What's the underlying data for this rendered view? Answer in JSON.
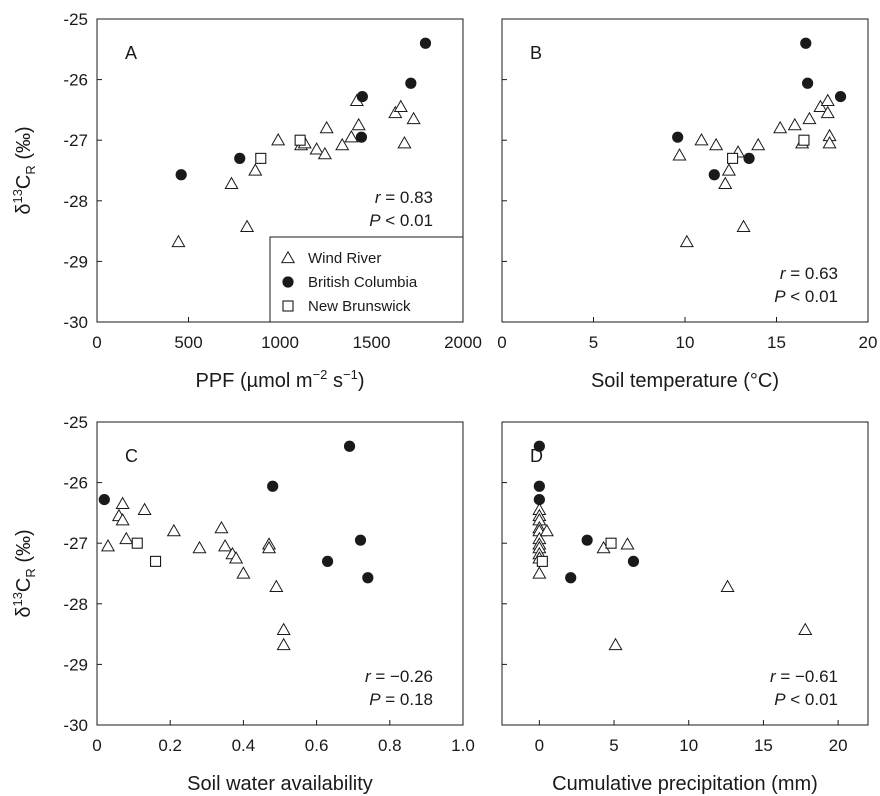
{
  "chart_data": [
    {
      "type": "scatter",
      "panel": "A",
      "xlabel_main": "PPF (µmol m",
      "xlabel_sup1": "−2",
      "xlabel_mid": " s",
      "xlabel_sup2": "−1",
      "xlabel_end": ")",
      "ylabel_delta": "δ",
      "ylabel_sup": "13",
      "ylabel_base": "C",
      "ylabel_sub": "R",
      "ylabel_tail": " (‰)",
      "xlim": [
        0,
        2000
      ],
      "ylim": [
        -30,
        -25
      ],
      "xticks": [
        "0",
        "500",
        "1000",
        "1500",
        "2000"
      ],
      "xtick_values": [
        0,
        500,
        1000,
        1500,
        2000
      ],
      "yticks": [
        "-25",
        "-26",
        "-27",
        "-28",
        "-29",
        "-30"
      ],
      "ytick_values": [
        -25,
        -26,
        -27,
        -28,
        -29,
        -30
      ],
      "r_label": "r",
      "r_value": " = 0.83",
      "p_label": "P",
      "p_value": " < 0.01",
      "series": [
        {
          "name": "Wind River",
          "marker": "triangle",
          "points": [
            [
              445,
              -28.68
            ],
            [
              735,
              -27.72
            ],
            [
              820,
              -28.43
            ],
            [
              865,
              -27.5
            ],
            [
              990,
              -27.0
            ],
            [
              1115,
              -27.08
            ],
            [
              1135,
              -27.05
            ],
            [
              1200,
              -27.15
            ],
            [
              1245,
              -27.23
            ],
            [
              1255,
              -26.8
            ],
            [
              1340,
              -27.08
            ],
            [
              1390,
              -26.95
            ],
            [
              1420,
              -26.35
            ],
            [
              1430,
              -26.75
            ],
            [
              1630,
              -26.55
            ],
            [
              1660,
              -26.45
            ],
            [
              1680,
              -27.05
            ],
            [
              1730,
              -26.65
            ]
          ]
        },
        {
          "name": "British Columbia",
          "marker": "circle",
          "points": [
            [
              460,
              -27.57
            ],
            [
              780,
              -27.3
            ],
            [
              1445,
              -26.95
            ],
            [
              1450,
              -26.28
            ],
            [
              1715,
              -26.06
            ],
            [
              1795,
              -25.4
            ]
          ]
        },
        {
          "name": "New Brunswick",
          "marker": "square",
          "points": [
            [
              895,
              -27.3
            ],
            [
              1110,
              -27.0
            ]
          ]
        }
      ],
      "legend_position": "bottom-right"
    },
    {
      "type": "scatter",
      "panel": "B",
      "xlabel": "Soil temperature (°C)",
      "xlim": [
        0,
        20
      ],
      "ylim": [
        -30,
        -25
      ],
      "xticks": [
        "0",
        "5",
        "10",
        "15",
        "20"
      ],
      "xtick_values": [
        0,
        5,
        10,
        15,
        20
      ],
      "r_label": "r",
      "r_value": " = 0.63",
      "p_label": "P",
      "p_value": " < 0.01",
      "series": [
        {
          "name": "Wind River",
          "marker": "triangle",
          "points": [
            [
              9.7,
              -27.25
            ],
            [
              10.1,
              -28.68
            ],
            [
              10.9,
              -27.0
            ],
            [
              11.7,
              -27.08
            ],
            [
              12.2,
              -27.72
            ],
            [
              12.4,
              -27.5
            ],
            [
              12.9,
              -27.2
            ],
            [
              13.2,
              -28.43
            ],
            [
              14.0,
              -27.08
            ],
            [
              15.2,
              -26.8
            ],
            [
              16.0,
              -26.75
            ],
            [
              16.4,
              -27.05
            ],
            [
              16.8,
              -26.65
            ],
            [
              17.4,
              -26.45
            ],
            [
              17.8,
              -26.35
            ],
            [
              17.8,
              -26.55
            ],
            [
              17.9,
              -26.93
            ],
            [
              17.9,
              -27.05
            ]
          ]
        },
        {
          "name": "British Columbia",
          "marker": "circle",
          "points": [
            [
              9.6,
              -26.95
            ],
            [
              11.6,
              -27.57
            ],
            [
              13.5,
              -27.3
            ],
            [
              16.6,
              -25.4
            ],
            [
              16.7,
              -26.06
            ],
            [
              18.5,
              -26.28
            ]
          ]
        },
        {
          "name": "New Brunswick",
          "marker": "square",
          "points": [
            [
              12.6,
              -27.3
            ],
            [
              16.5,
              -27.0
            ]
          ]
        }
      ]
    },
    {
      "type": "scatter",
      "panel": "C",
      "xlabel": "Soil water availability",
      "xlim": [
        0,
        1.0
      ],
      "ylim": [
        -30,
        -25
      ],
      "xticks": [
        "0",
        "0.2",
        "0.4",
        "0.6",
        "0.8",
        "1.0"
      ],
      "xtick_values": [
        0,
        0.2,
        0.4,
        0.6,
        0.8,
        1.0
      ],
      "yticks": [
        "-25",
        "-26",
        "-27",
        "-28",
        "-29",
        "-30"
      ],
      "ytick_values": [
        -25,
        -26,
        -27,
        -28,
        -29,
        -30
      ],
      "r_label": "r",
      "r_value": " = −0.26",
      "p_label": "P",
      "p_value": " = 0.18",
      "series": [
        {
          "name": "Wind River",
          "marker": "triangle",
          "points": [
            [
              0.03,
              -27.05
            ],
            [
              0.06,
              -26.55
            ],
            [
              0.07,
              -26.35
            ],
            [
              0.07,
              -26.62
            ],
            [
              0.08,
              -26.93
            ],
            [
              0.13,
              -26.45
            ],
            [
              0.21,
              -26.8
            ],
            [
              0.28,
              -27.08
            ],
            [
              0.34,
              -26.75
            ],
            [
              0.35,
              -27.05
            ],
            [
              0.37,
              -27.18
            ],
            [
              0.38,
              -27.25
            ],
            [
              0.4,
              -27.5
            ],
            [
              0.47,
              -27.02
            ],
            [
              0.47,
              -27.08
            ],
            [
              0.49,
              -27.72
            ],
            [
              0.51,
              -28.43
            ],
            [
              0.51,
              -28.68
            ]
          ]
        },
        {
          "name": "British Columbia",
          "marker": "circle",
          "points": [
            [
              0.02,
              -26.28
            ],
            [
              0.48,
              -26.06
            ],
            [
              0.63,
              -27.3
            ],
            [
              0.69,
              -25.4
            ],
            [
              0.72,
              -26.95
            ],
            [
              0.74,
              -27.57
            ]
          ]
        },
        {
          "name": "New Brunswick",
          "marker": "square",
          "points": [
            [
              0.11,
              -27.0
            ],
            [
              0.16,
              -27.3
            ]
          ]
        }
      ]
    },
    {
      "type": "scatter",
      "panel": "D",
      "xlabel": "Cumulative precipitation (mm)",
      "xlim": [
        -2.5,
        22
      ],
      "ylim": [
        -30,
        -25
      ],
      "xticks": [
        "0",
        "5",
        "10",
        "15",
        "20"
      ],
      "xtick_values": [
        0,
        5,
        10,
        15,
        20
      ],
      "r_label": "r",
      "r_value": " = −0.61",
      "p_label": "P",
      "p_value": " < 0.01",
      "series": [
        {
          "name": "Wind River",
          "marker": "triangle",
          "points": [
            [
              0,
              -26.45
            ],
            [
              0,
              -26.55
            ],
            [
              0,
              -26.62
            ],
            [
              0,
              -26.75
            ],
            [
              0,
              -26.8
            ],
            [
              0,
              -26.93
            ],
            [
              0,
              -27.02
            ],
            [
              0,
              -27.08
            ],
            [
              0,
              -27.18
            ],
            [
              0,
              -27.25
            ],
            [
              0,
              -27.5
            ],
            [
              0.5,
              -26.8
            ],
            [
              4.3,
              -27.08
            ],
            [
              5.1,
              -28.68
            ],
            [
              5.9,
              -27.02
            ],
            [
              12.6,
              -27.72
            ],
            [
              17.8,
              -28.43
            ]
          ]
        },
        {
          "name": "British Columbia",
          "marker": "circle",
          "points": [
            [
              0,
              -25.4
            ],
            [
              0,
              -26.06
            ],
            [
              0,
              -26.28
            ],
            [
              2.1,
              -27.57
            ],
            [
              3.2,
              -26.95
            ],
            [
              6.3,
              -27.3
            ]
          ]
        },
        {
          "name": "New Brunswick",
          "marker": "square",
          "points": [
            [
              0.2,
              -27.3
            ],
            [
              4.8,
              -27.0
            ]
          ]
        }
      ]
    }
  ],
  "legend": {
    "items": [
      {
        "label": "Wind River",
        "marker": "triangle"
      },
      {
        "label": "British Columbia",
        "marker": "circle"
      },
      {
        "label": "New Brunswick",
        "marker": "square"
      }
    ]
  },
  "colors": {
    "ink": "#1a1a1a",
    "fill": "#ffffff"
  }
}
